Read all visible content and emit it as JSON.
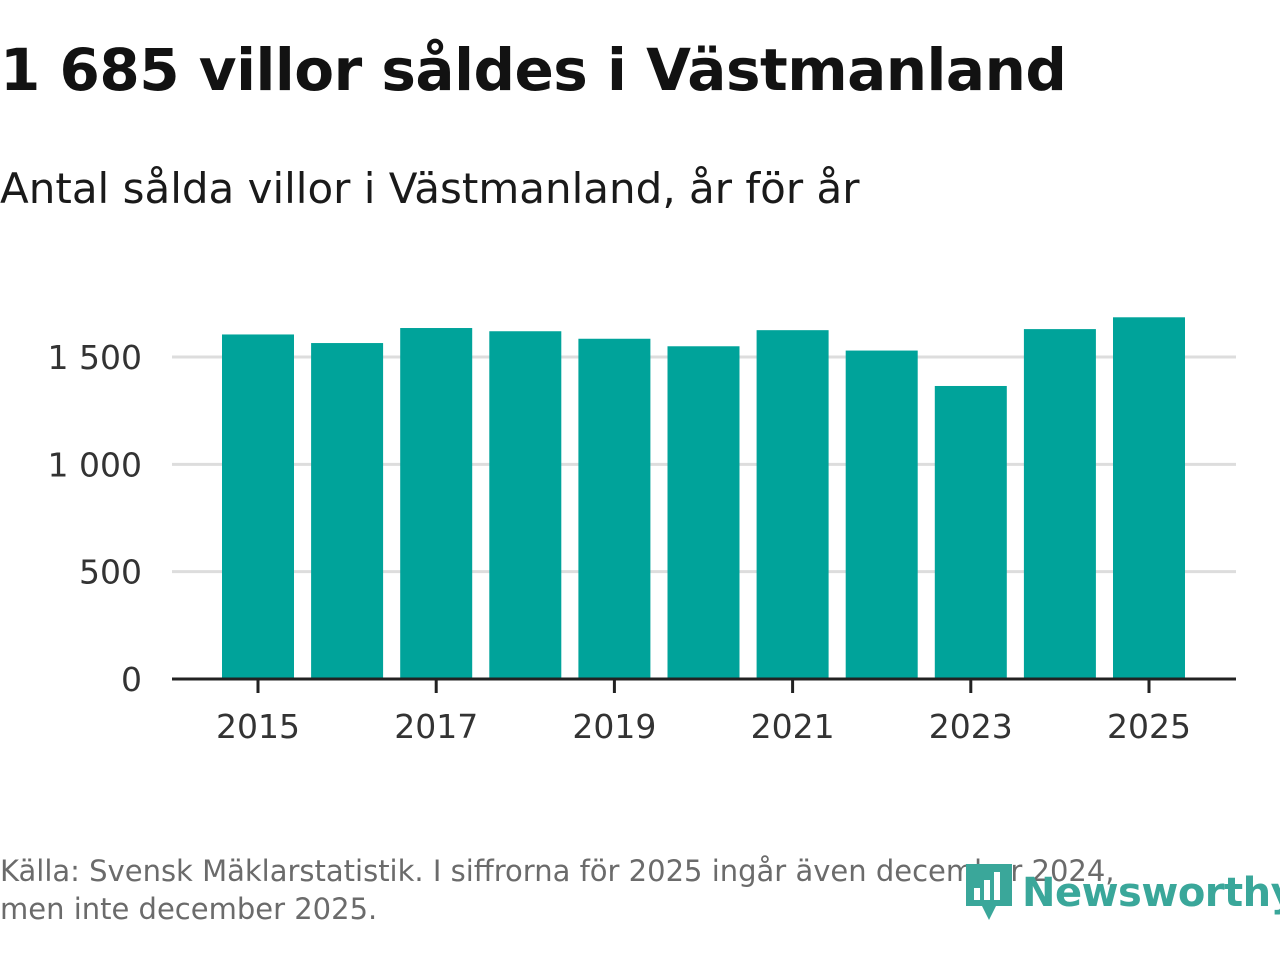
{
  "header": {
    "title": "1 685 villor såldes i Västmanland",
    "subtitle": "Antal sålda villor i Västmanland, år för år"
  },
  "footer": {
    "source_line1": "Källa: Svensk Mäklarstatistik. I siffrorna för 2025 ingår även december 2024,",
    "source_line2": "men inte december 2025."
  },
  "logo": {
    "text": "Newsworthy",
    "icon": "newsworthy-logo-icon",
    "color": "#3aa79a"
  },
  "colors": {
    "bar": "#00a39a",
    "grid": "#dddddd",
    "axis": "#222222"
  },
  "chart_data": {
    "type": "bar",
    "title": "1 685 villor såldes i Västmanland",
    "subtitle": "Antal sålda villor i Västmanland, år för år",
    "xlabel": "",
    "ylabel": "",
    "categories": [
      "2015",
      "2016",
      "2017",
      "2018",
      "2019",
      "2020",
      "2021",
      "2022",
      "2023",
      "2024",
      "2025"
    ],
    "values": [
      1605,
      1565,
      1635,
      1620,
      1585,
      1550,
      1625,
      1530,
      1365,
      1630,
      1685
    ],
    "x_tick_labels": [
      "2015",
      "2017",
      "2019",
      "2021",
      "2023",
      "2025"
    ],
    "y_ticks": [
      0,
      500,
      1000,
      1500
    ],
    "y_tick_labels": [
      "0",
      "500",
      "1 000",
      "1 500"
    ],
    "ylim": [
      0,
      1750
    ],
    "grid": true
  }
}
